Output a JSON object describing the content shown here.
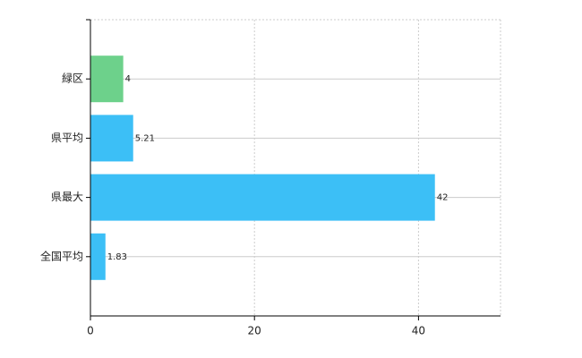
{
  "chart_data": {
    "type": "hbar",
    "categories": [
      "緑区",
      "県平均",
      "県最大",
      "全国平均"
    ],
    "values": [
      4,
      5.21,
      42,
      1.83
    ],
    "colors": [
      "#6dd18b",
      "#3cbff6",
      "#3cbff6",
      "#3cbff6"
    ],
    "xlim": [
      0,
      50
    ],
    "xticks": [
      0,
      20,
      40
    ],
    "grid": true
  }
}
